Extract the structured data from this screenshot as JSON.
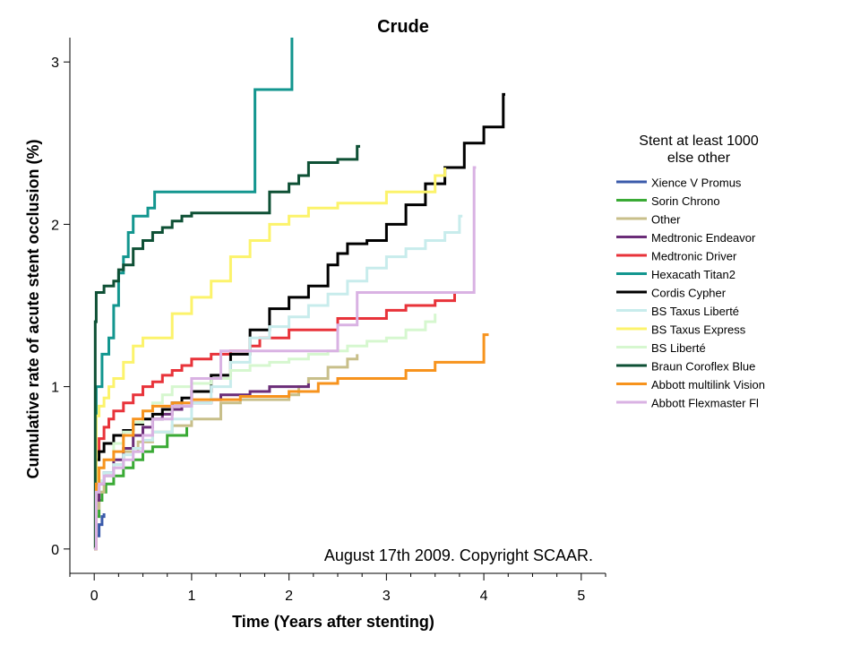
{
  "chart_data": {
    "type": "line",
    "step": true,
    "title": "Crude",
    "xlabel": "Time (Years after stenting)",
    "ylabel": "Cumulative rate of acute stent occlusion (%)",
    "xlim": [
      -0.25,
      5.25
    ],
    "ylim": [
      -0.15,
      3.15
    ],
    "xticks": [
      0,
      1,
      2,
      3,
      4,
      5
    ],
    "xtick_labels": [
      "0",
      "1",
      "2",
      "3",
      "4",
      "5"
    ],
    "yticks": [
      0,
      1,
      2,
      3
    ],
    "ytick_labels": [
      "0",
      "1",
      "2",
      "3"
    ],
    "x_minor_step": 0.25,
    "annotation": "August 17th 2009. Copyright SCAAR.",
    "legend": {
      "title_line1": "Stent at least 1000",
      "title_line2": "else other",
      "position": "right"
    },
    "series": [
      {
        "name": "Xience V Promus",
        "color": "#3b5bab",
        "x": [
          0,
          0.02,
          0.05,
          0.08,
          0.1
        ],
        "y": [
          0,
          0.08,
          0.15,
          0.2,
          0.22
        ]
      },
      {
        "name": "Sorin Chrono",
        "color": "#3aaa35",
        "x": [
          0,
          0.02,
          0.05,
          0.08,
          0.12,
          0.2,
          0.3,
          0.4,
          0.5,
          0.6,
          0.75,
          0.95
        ],
        "y": [
          0,
          0.2,
          0.3,
          0.35,
          0.4,
          0.45,
          0.5,
          0.55,
          0.6,
          0.63,
          0.7,
          0.75
        ]
      },
      {
        "name": "Other",
        "color": "#c8bf8a",
        "x": [
          0,
          0.02,
          0.05,
          0.1,
          0.2,
          0.3,
          0.45,
          0.6,
          0.8,
          1.0,
          1.15,
          1.3,
          1.5,
          1.8,
          2.0,
          2.1,
          2.2,
          2.4,
          2.6,
          2.7
        ],
        "y": [
          0,
          0.25,
          0.35,
          0.45,
          0.52,
          0.6,
          0.66,
          0.72,
          0.76,
          0.8,
          0.8,
          0.9,
          0.92,
          0.92,
          0.95,
          1.0,
          1.05,
          1.12,
          1.17,
          1.2
        ]
      },
      {
        "name": "Medtronic Endeavor",
        "color": "#6b2d78",
        "x": [
          0,
          0.02,
          0.05,
          0.1,
          0.2,
          0.3,
          0.4,
          0.5,
          0.6,
          0.7,
          0.8,
          0.9,
          1.0,
          1.2,
          1.3,
          1.6,
          1.8,
          2.0,
          2.2
        ],
        "y": [
          0,
          0.3,
          0.4,
          0.47,
          0.55,
          0.62,
          0.7,
          0.75,
          0.8,
          0.83,
          0.86,
          0.88,
          0.9,
          0.92,
          0.95,
          0.97,
          1.0,
          1.0,
          1.02
        ]
      },
      {
        "name": "Medtronic Driver",
        "color": "#e8333a",
        "x": [
          0,
          0.02,
          0.05,
          0.1,
          0.15,
          0.2,
          0.3,
          0.4,
          0.5,
          0.6,
          0.7,
          0.8,
          0.9,
          1.0,
          1.2,
          1.4,
          1.6,
          1.7,
          2.0,
          2.5,
          3.0,
          3.2,
          3.5,
          3.7
        ],
        "y": [
          0,
          0.6,
          0.68,
          0.75,
          0.8,
          0.85,
          0.9,
          0.95,
          1.0,
          1.03,
          1.07,
          1.1,
          1.13,
          1.17,
          1.2,
          1.22,
          1.25,
          1.3,
          1.35,
          1.42,
          1.47,
          1.5,
          1.53,
          1.58
        ]
      },
      {
        "name": "Hexacath Titan2",
        "color": "#13968f",
        "x": [
          0,
          0.02,
          0.08,
          0.15,
          0.2,
          0.25,
          0.3,
          0.35,
          0.4,
          0.55,
          0.62,
          1.0,
          1.4,
          1.65,
          2.0,
          2.03
        ],
        "y": [
          0,
          1.0,
          1.2,
          1.3,
          1.5,
          1.7,
          1.8,
          1.95,
          2.05,
          2.1,
          2.2,
          2.2,
          2.2,
          2.83,
          2.83,
          3.15
        ]
      },
      {
        "name": "Cordis Cypher",
        "color": "#000000",
        "x": [
          0,
          0.02,
          0.05,
          0.1,
          0.2,
          0.3,
          0.4,
          0.5,
          0.6,
          0.7,
          0.8,
          0.9,
          1.0,
          1.2,
          1.4,
          1.6,
          1.8,
          2.0,
          2.2,
          2.4,
          2.5,
          2.6,
          2.8,
          3.0,
          3.2,
          3.4,
          3.6,
          3.8,
          4.0,
          4.2,
          4.22
        ],
        "y": [
          0,
          0.55,
          0.6,
          0.65,
          0.7,
          0.73,
          0.77,
          0.8,
          0.83,
          0.86,
          0.9,
          0.93,
          0.97,
          1.07,
          1.2,
          1.35,
          1.48,
          1.55,
          1.62,
          1.75,
          1.82,
          1.88,
          1.9,
          2.0,
          2.12,
          2.25,
          2.35,
          2.5,
          2.6,
          2.8,
          2.8
        ]
      },
      {
        "name": "BS Taxus Liberté",
        "color": "#c8ecec",
        "x": [
          0,
          0.02,
          0.05,
          0.1,
          0.2,
          0.3,
          0.4,
          0.5,
          0.6,
          0.8,
          1.0,
          1.2,
          1.4,
          1.6,
          1.8,
          2.0,
          2.2,
          2.4,
          2.6,
          2.8,
          3.0,
          3.2,
          3.4,
          3.6,
          3.75,
          3.78
        ],
        "y": [
          0,
          0.35,
          0.42,
          0.47,
          0.52,
          0.58,
          0.62,
          0.67,
          0.72,
          0.8,
          0.9,
          1.0,
          1.15,
          1.3,
          1.37,
          1.43,
          1.5,
          1.57,
          1.65,
          1.73,
          1.8,
          1.85,
          1.9,
          1.95,
          2.05,
          2.05
        ]
      },
      {
        "name": "BS Taxus Express",
        "color": "#fcf36b",
        "x": [
          0,
          0.02,
          0.05,
          0.1,
          0.15,
          0.2,
          0.3,
          0.4,
          0.5,
          0.6,
          0.8,
          1.0,
          1.2,
          1.4,
          1.6,
          1.8,
          2.0,
          2.2,
          2.5,
          3.0,
          3.5,
          3.6
        ],
        "y": [
          0,
          0.82,
          0.88,
          0.93,
          1.0,
          1.05,
          1.15,
          1.25,
          1.3,
          1.3,
          1.45,
          1.55,
          1.65,
          1.8,
          1.9,
          2.0,
          2.05,
          2.1,
          2.13,
          2.2,
          2.3,
          2.35
        ]
      },
      {
        "name": "BS Liberté",
        "color": "#d6f7cf",
        "x": [
          0,
          0.02,
          0.05,
          0.1,
          0.2,
          0.3,
          0.4,
          0.5,
          0.6,
          0.7,
          0.8,
          1.0,
          1.2,
          1.4,
          1.6,
          1.8,
          2.0,
          2.2,
          2.4,
          2.6,
          2.8,
          3.0,
          3.2,
          3.4,
          3.5
        ],
        "y": [
          0,
          0.4,
          0.5,
          0.55,
          0.65,
          0.72,
          0.78,
          0.85,
          0.9,
          0.95,
          1.0,
          1.02,
          1.05,
          1.1,
          1.13,
          1.15,
          1.17,
          1.2,
          1.22,
          1.25,
          1.28,
          1.3,
          1.35,
          1.4,
          1.45
        ]
      },
      {
        "name": "Braun Coroflex Blue",
        "color": "#0e5035",
        "x": [
          0,
          0.01,
          0.02,
          0.1,
          0.2,
          0.25,
          0.3,
          0.4,
          0.5,
          0.6,
          0.7,
          0.8,
          0.9,
          1.0,
          1.2,
          1.5,
          1.8,
          2.0,
          2.1,
          2.2,
          2.5,
          2.7,
          2.73
        ],
        "y": [
          0,
          1.4,
          1.58,
          1.62,
          1.65,
          1.72,
          1.75,
          1.85,
          1.9,
          1.95,
          1.98,
          2.02,
          2.05,
          2.07,
          2.07,
          2.07,
          2.2,
          2.25,
          2.3,
          2.38,
          2.4,
          2.48,
          2.48
        ]
      },
      {
        "name": "Abbott multilink Vision",
        "color": "#f7931d",
        "x": [
          0,
          0.02,
          0.05,
          0.1,
          0.2,
          0.3,
          0.4,
          0.5,
          0.6,
          0.8,
          1.0,
          1.5,
          2.0,
          2.3,
          2.5,
          3.0,
          3.2,
          3.5,
          4.0,
          4.05
        ],
        "y": [
          0,
          0.4,
          0.5,
          0.55,
          0.6,
          0.7,
          0.8,
          0.85,
          0.88,
          0.9,
          0.92,
          0.94,
          0.97,
          1.02,
          1.05,
          1.05,
          1.1,
          1.15,
          1.32,
          1.32
        ]
      },
      {
        "name": "Abbott Flexmaster Fl",
        "color": "#d9b2e3",
        "x": [
          0,
          0.02,
          0.05,
          0.1,
          0.2,
          0.3,
          0.4,
          0.5,
          0.6,
          0.8,
          1.0,
          1.3,
          1.5,
          2.0,
          2.5,
          2.7,
          3.5,
          3.9,
          3.92
        ],
        "y": [
          0,
          0.35,
          0.4,
          0.45,
          0.5,
          0.55,
          0.6,
          0.7,
          0.8,
          0.88,
          1.05,
          1.22,
          1.22,
          1.22,
          1.38,
          1.58,
          1.58,
          2.35,
          2.35
        ]
      }
    ]
  }
}
